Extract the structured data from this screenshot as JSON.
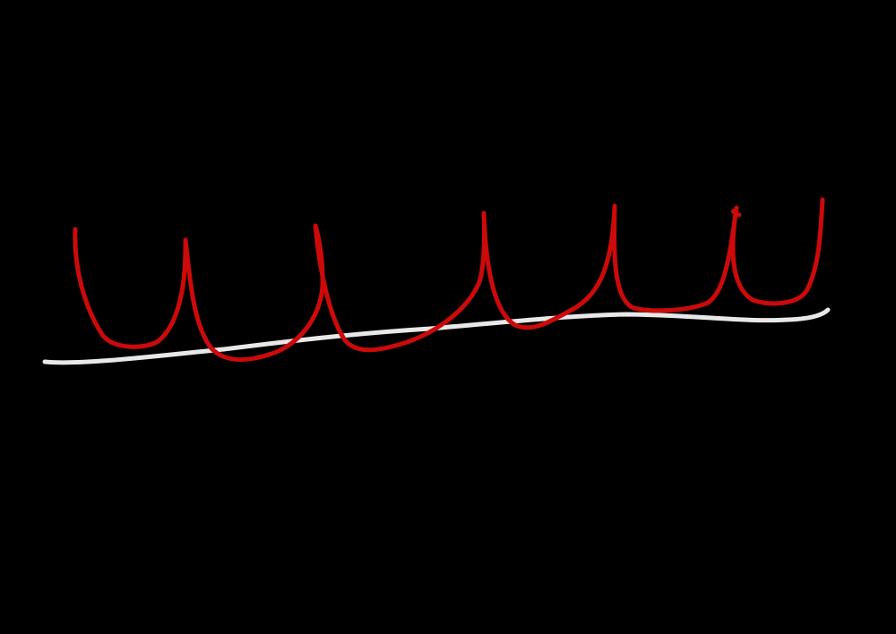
{
  "canvas": {
    "background_color": "#000000",
    "strokes": [
      {
        "name": "baseline-stroke",
        "color": "#e8e8e8"
      },
      {
        "name": "loop-stroke",
        "color": "#cc0a0a"
      }
    ]
  }
}
